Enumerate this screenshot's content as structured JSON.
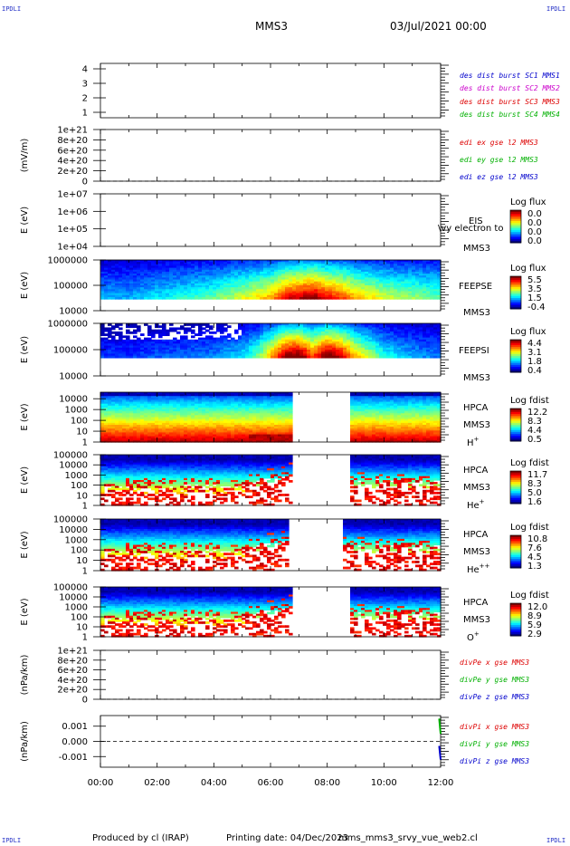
{
  "header": {
    "corner_label": "IPDLI",
    "spacecraft": "MMS3",
    "datetime": "03/Jul/2021 00:00"
  },
  "footer": {
    "producer": "Produced by cl (IRAP)",
    "print_date": "Printing date: 04/Dec/2023",
    "script_name": "mms_mms3_srvy_vue_web2.cl"
  },
  "time_axis": {
    "ticks": [
      "00:00",
      "02:00",
      "04:00",
      "06:00",
      "08:00",
      "10:00",
      "12:00"
    ],
    "range_hours": [
      0,
      12
    ]
  },
  "colors": {
    "blue": "#0000cc",
    "magenta": "#cc00cc",
    "red": "#dd0000",
    "green": "#00b000",
    "gap": "#ffffff"
  },
  "chart_data": [
    {
      "type": "line",
      "panel": "des-dist",
      "ylabel": "",
      "yticks": [
        "1",
        "2",
        "3",
        "4"
      ],
      "ylim": [
        1,
        4
      ],
      "legend": [
        {
          "text": "des dist burst SC1 MMS1",
          "color": "blue"
        },
        {
          "text": "des dist burst SC2 MMS2",
          "color": "magenta"
        },
        {
          "text": "des dist burst SC3 MMS3",
          "color": "red"
        },
        {
          "text": "des dist burst SC4 MMS4",
          "color": "green"
        }
      ],
      "series": []
    },
    {
      "type": "line",
      "panel": "edi",
      "ylabel": "(mV/m)",
      "yticks": [
        "0",
        "2e+20",
        "4e+20",
        "6e+20",
        "8e+20",
        "1e+21"
      ],
      "ylim": [
        0,
        1e+21
      ],
      "zero_line": true,
      "legend": [
        {
          "text": "edi ex gse l2 MMS3",
          "color": "red"
        },
        {
          "text": "edi ey gse l2 MMS3",
          "color": "green"
        },
        {
          "text": "edi ez gse l2 MMS3",
          "color": "blue"
        }
      ],
      "series": []
    },
    {
      "type": "heatmap",
      "panel": "eis",
      "ylabel": "E (eV)",
      "yticks": [
        "1e+04",
        "1e+05",
        "1e+06",
        "1e+07"
      ],
      "ylim": [
        10000,
        10000000
      ],
      "yscale": "log",
      "instrument": "EIS",
      "spacecraft": "MMS3",
      "overlay_text": "\\vy electron to",
      "cbar_title": "Log flux",
      "cbar_ticks": [
        "0.0",
        "0.0",
        "0.0",
        "0.0"
      ],
      "intensity": []
    },
    {
      "type": "heatmap",
      "panel": "feeps-e",
      "ylabel": "E (eV)",
      "yticks": [
        "10000",
        "100000",
        "1000000"
      ],
      "ylim": [
        10000,
        1000000
      ],
      "yscale": "log",
      "instrument": "FEEPSE",
      "spacecraft": "MMS3",
      "cbar_title": "Log flux",
      "cbar_ticks": [
        "5.5",
        "3.5",
        "1.5",
        "-0.4"
      ],
      "cbar_range": [
        -0.4,
        5.5
      ],
      "energy_band": [
        30000,
        1000000
      ],
      "times": [
        0,
        1,
        2,
        3,
        4,
        5,
        5.5,
        6,
        6.5,
        7,
        7.5,
        8,
        8.5,
        9,
        10,
        11,
        12
      ],
      "intensity": [
        0.25,
        0.25,
        0.3,
        0.35,
        0.4,
        0.5,
        0.55,
        0.6,
        0.75,
        0.8,
        0.85,
        0.75,
        0.7,
        0.6,
        0.5,
        0.45,
        0.4
      ]
    },
    {
      "type": "heatmap",
      "panel": "feeps-i",
      "ylabel": "E (eV)",
      "yticks": [
        "10000",
        "100000",
        "1000000"
      ],
      "ylim": [
        10000,
        1000000
      ],
      "yscale": "log",
      "instrument": "FEEPSI",
      "spacecraft": "MMS3",
      "cbar_title": "Log flux",
      "cbar_ticks": [
        "4.4",
        "3.1",
        "1.8",
        "0.4"
      ],
      "cbar_range": [
        0.4,
        4.4
      ],
      "energy_band": [
        50000,
        1000000
      ],
      "times": [
        0,
        1,
        2,
        3,
        4,
        5,
        5.5,
        6,
        6.5,
        7,
        7.5,
        8,
        8.5,
        9,
        10,
        11,
        12
      ],
      "intensity": [
        0.15,
        0.15,
        0.18,
        0.2,
        0.22,
        0.3,
        0.4,
        0.6,
        0.85,
        0.9,
        0.7,
        0.9,
        0.8,
        0.6,
        0.35,
        0.25,
        0.2
      ]
    },
    {
      "type": "heatmap",
      "panel": "hpca-h",
      "ylabel": "E (eV)",
      "yticks": [
        "1",
        "10",
        "100",
        "1000",
        "10000"
      ],
      "ylim": [
        1,
        40000
      ],
      "yscale": "log",
      "instrument": "HPCA",
      "spacecraft": "MMS3",
      "species": "H",
      "charge": "+",
      "cbar_title": "Log fdist",
      "cbar_ticks": [
        "12.2",
        "8.3",
        "4.4",
        "0.5"
      ],
      "cbar_range": [
        0.5,
        12.2
      ],
      "gap_hours": [
        6.75,
        8.75
      ],
      "intensity": []
    },
    {
      "type": "heatmap",
      "panel": "hpca-he",
      "ylabel": "E (eV)",
      "yticks": [
        "1",
        "10",
        "100",
        "1000",
        "10000",
        "100000"
      ],
      "ylim": [
        1,
        100000
      ],
      "yscale": "log",
      "instrument": "HPCA",
      "spacecraft": "MMS3",
      "species": "He",
      "charge": "+",
      "cbar_title": "Log fdist",
      "cbar_ticks": [
        "11.7",
        "8.3",
        "5.0",
        "1.6"
      ],
      "cbar_range": [
        1.6,
        11.7
      ],
      "gap_hours": [
        6.75,
        8.75
      ],
      "intensity": []
    },
    {
      "type": "heatmap",
      "panel": "hpca-he2",
      "ylabel": "E (eV)",
      "yticks": [
        "1",
        "10",
        "100",
        "1000",
        "10000",
        "100000"
      ],
      "ylim": [
        1,
        100000
      ],
      "yscale": "log",
      "instrument": "HPCA",
      "spacecraft": "MMS3",
      "species": "He",
      "charge": "++",
      "cbar_title": "Log fdist",
      "cbar_ticks": [
        "10.8",
        "7.6",
        "4.5",
        "1.3"
      ],
      "cbar_range": [
        1.3,
        10.8
      ],
      "gap_hours": [
        6.6,
        8.6
      ],
      "intensity": []
    },
    {
      "type": "heatmap",
      "panel": "hpca-o",
      "ylabel": "E (eV)",
      "yticks": [
        "1",
        "10",
        "100",
        "1000",
        "10000",
        "100000"
      ],
      "ylim": [
        1,
        100000
      ],
      "yscale": "log",
      "instrument": "HPCA",
      "spacecraft": "MMS3",
      "species": "O",
      "charge": "+",
      "cbar_title": "Log fdist",
      "cbar_ticks": [
        "12.0",
        "8.9",
        "5.9",
        "2.9"
      ],
      "cbar_range": [
        2.9,
        12.0
      ],
      "gap_hours": [
        6.75,
        8.75
      ],
      "intensity": []
    },
    {
      "type": "line",
      "panel": "divpe",
      "ylabel": "(nPa/km)",
      "yticks": [
        "0",
        "2e+20",
        "4e+20",
        "6e+20",
        "8e+20",
        "1e+21"
      ],
      "ylim": [
        0,
        1e+21
      ],
      "zero_line": true,
      "legend": [
        {
          "text": "divPe x gse MMS3",
          "color": "red"
        },
        {
          "text": "divPe y gse MMS3",
          "color": "green"
        },
        {
          "text": "divPe z gse MMS3",
          "color": "blue"
        }
      ],
      "series": []
    },
    {
      "type": "line",
      "panel": "divpi",
      "ylabel": "(nPa/km)",
      "yticks": [
        "-0.001",
        "0.000",
        "0.001"
      ],
      "ylim": [
        -0.0017,
        0.0017
      ],
      "zero_line": true,
      "legend": [
        {
          "text": "divPi x gse MMS3",
          "color": "red"
        },
        {
          "text": "divPi y gse MMS3",
          "color": "green"
        },
        {
          "text": "divPi z gse MMS3",
          "color": "blue"
        }
      ],
      "series": [
        {
          "name": "divPi y gse MMS3",
          "color": "green",
          "x": [
            11.95,
            12.0
          ],
          "y": [
            0.0015,
            0.0005
          ]
        },
        {
          "name": "divPi z gse MMS3",
          "color": "blue",
          "x": [
            11.95,
            12.0
          ],
          "y": [
            -0.0003,
            -0.0012
          ]
        }
      ]
    }
  ]
}
